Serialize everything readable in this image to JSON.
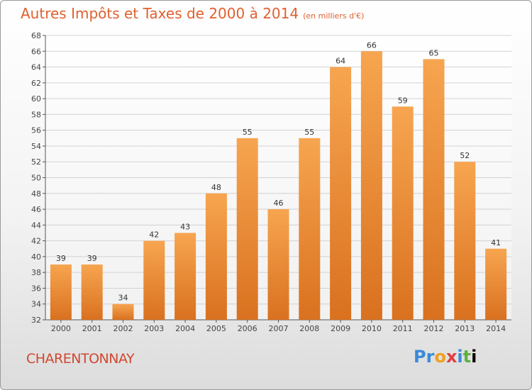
{
  "chart_data": {
    "type": "bar",
    "title": "Autres Impôts et Taxes de 2000 à 2014",
    "unit_label": "(en milliers d'€)",
    "categories": [
      "2000",
      "2001",
      "2002",
      "2003",
      "2004",
      "2005",
      "2006",
      "2007",
      "2008",
      "2009",
      "2010",
      "2011",
      "2012",
      "2013",
      "2014"
    ],
    "values": [
      39,
      39,
      34,
      42,
      43,
      48,
      55,
      46,
      55,
      64,
      66,
      59,
      65,
      52,
      41
    ],
    "ylim": [
      32,
      68
    ],
    "yticks": [
      32,
      34,
      36,
      38,
      40,
      42,
      44,
      46,
      48,
      50,
      52,
      54,
      56,
      58,
      60,
      62,
      64,
      66,
      68
    ],
    "grid": true,
    "bar_color_top": "#f7a550",
    "bar_color_bottom": "#d9711f"
  },
  "commune": "CHARENTONNAY",
  "brand": [
    "P",
    "r",
    "o",
    "x",
    "i",
    "t",
    "i"
  ]
}
